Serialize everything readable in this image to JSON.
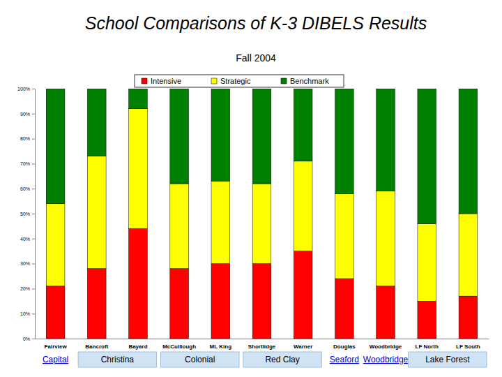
{
  "chart_data": {
    "type": "bar",
    "stacked": true,
    "title": "School Comparisons of K-3 DIBELS Results",
    "subtitle": "Fall 2004",
    "categories": [
      "Fairview",
      "Bancroft",
      "Bayard",
      "McCulllough",
      "ML King",
      "Shortlidge",
      "Warner",
      "Douglas",
      "Woodbridge",
      "LF North",
      "LF South"
    ],
    "series": [
      {
        "name": "Intensive",
        "color": "#ff0000",
        "values": [
          21,
          28,
          44,
          28,
          30,
          30,
          35,
          24,
          21,
          15,
          17
        ]
      },
      {
        "name": "Strategic",
        "color": "#ffff00",
        "values": [
          33,
          45,
          48,
          34,
          33,
          32,
          36,
          34,
          38,
          31,
          33
        ]
      },
      {
        "name": "Benchmark",
        "color": "#008000",
        "values": [
          46,
          27,
          8,
          38,
          37,
          38,
          29,
          42,
          41,
          54,
          50
        ]
      }
    ],
    "ylim": [
      0,
      100
    ],
    "yticks": [
      {
        "value": 0,
        "label": "0%"
      },
      {
        "value": 10,
        "label": "10%"
      },
      {
        "value": 20,
        "label": "20%"
      },
      {
        "value": 30,
        "label": "30%"
      },
      {
        "value": 40,
        "label": "40%"
      },
      {
        "value": 50,
        "label": "50%"
      },
      {
        "value": 60,
        "label": "60%"
      },
      {
        "value": 70,
        "label": "70%"
      },
      {
        "value": 80,
        "label": "80%"
      },
      {
        "value": 90,
        "label": "90%"
      },
      {
        "value": 100,
        "label": "100%"
      }
    ],
    "legend": "top",
    "annotations": [
      {
        "text": "Capital",
        "categories": [
          "Fairview"
        ]
      },
      {
        "text": "Christina",
        "categories": [
          "Bancroft",
          "Bayard"
        ]
      },
      {
        "text": "Colonial",
        "categories": [
          "McCulllough",
          "ML King"
        ]
      },
      {
        "text": "Red Clay",
        "categories": [
          "Shortlidge",
          "Warner"
        ]
      },
      {
        "text": "Seaford",
        "categories": [
          "Douglas"
        ]
      },
      {
        "text": "Woodbridge",
        "categories": [
          "Woodbridge"
        ]
      },
      {
        "text": "Lake Forest",
        "categories": [
          "LF North",
          "LF South"
        ]
      }
    ]
  }
}
